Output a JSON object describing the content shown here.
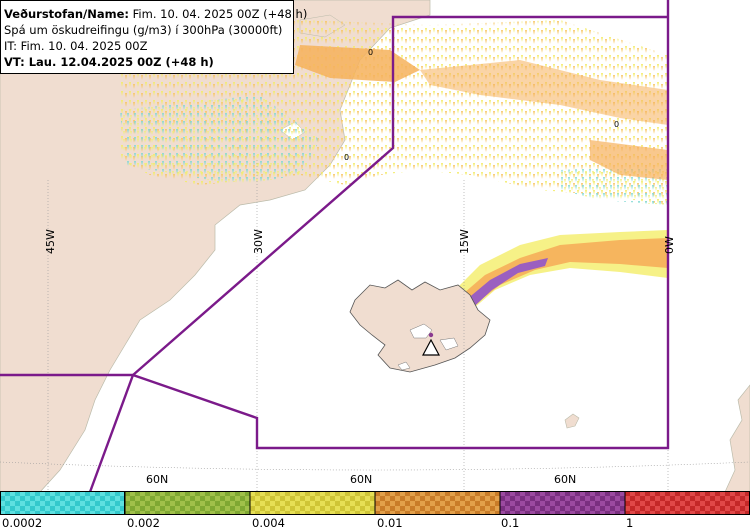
{
  "header": {
    "line1_bold": "Veðurstofan/Name:",
    "line1_rest": " Fim. 10. 04. 2025 00Z (+48 h)",
    "line2": "Spá um öskudreifingu (g/m3) í 300hPa (30000ft)",
    "line3": "IT: Fim. 10. 04. 2025 00Z",
    "line4": "VT: Lau. 12.04.2025 00Z (+48 h)"
  },
  "grid_labels": {
    "lon_45w": "45W",
    "lon_30w": "30W",
    "lon_15w": "15W",
    "lon_0w": "0W",
    "lat_a": "60N",
    "lat_b": "60N",
    "lat_c": "60N"
  },
  "contour_labels": [
    "0",
    "0",
    "0"
  ],
  "volcano_icon": "volcano-warning-triangle-icon",
  "legend": {
    "labels": [
      "0.0002",
      "0.002",
      "0.004",
      "0.01",
      "0.1",
      "1"
    ],
    "colors": [
      "#33c9cc",
      "#8ab33a",
      "#d9d140",
      "#d88c30",
      "#8a3a90",
      "#d03030"
    ]
  },
  "colors": {
    "fir_boundary": "#7b1a8a",
    "land": "#f0ddd0",
    "ash_low": "#f5f07a",
    "ash_mid": "#f6b15c",
    "ash_plume": "#9b5fc0"
  }
}
